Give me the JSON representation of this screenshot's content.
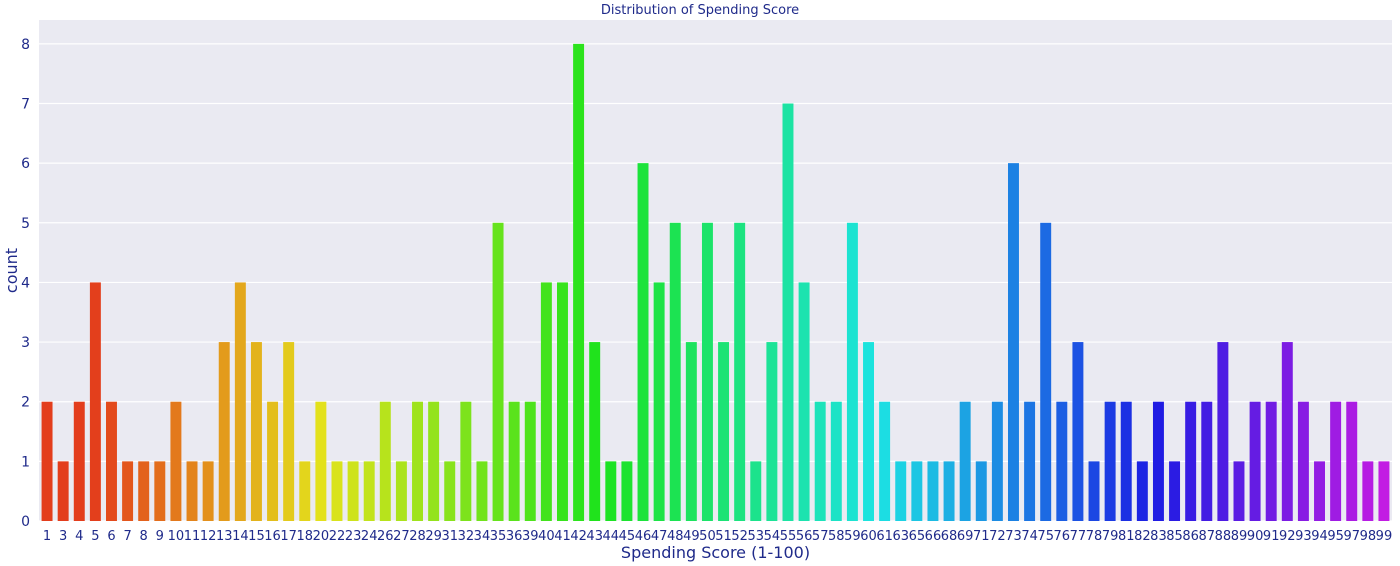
{
  "chart_data": {
    "type": "bar",
    "title": "Distribution of Spending Score",
    "xlabel": "Spending Score (1-100)",
    "ylabel": "count",
    "ylim": [
      0,
      8.4
    ],
    "yticks": [
      0,
      1,
      2,
      3,
      4,
      5,
      6,
      7,
      8
    ],
    "grid": true,
    "palette": "hsv (red → yellow → green → cyan → blue → magenta)",
    "background_color": "#eaeaf2",
    "text_color": "#1f2a8a",
    "categories": [
      "1",
      "3",
      "4",
      "5",
      "6",
      "7",
      "8",
      "9",
      "10",
      "11",
      "12",
      "13",
      "14",
      "15",
      "16",
      "17",
      "18",
      "20",
      "22",
      "23",
      "24",
      "26",
      "27",
      "28",
      "29",
      "31",
      "32",
      "34",
      "35",
      "36",
      "39",
      "40",
      "41",
      "42",
      "43",
      "44",
      "45",
      "46",
      "47",
      "48",
      "49",
      "50",
      "51",
      "52",
      "53",
      "54",
      "55",
      "56",
      "57",
      "58",
      "59",
      "60",
      "61",
      "63",
      "65",
      "66",
      "68",
      "69",
      "71",
      "72",
      "73",
      "74",
      "75",
      "76",
      "77",
      "78",
      "79",
      "81",
      "82",
      "83",
      "85",
      "86",
      "87",
      "88",
      "89",
      "90",
      "91",
      "92",
      "93",
      "94",
      "95",
      "97",
      "98",
      "99"
    ],
    "values": [
      2,
      1,
      2,
      4,
      2,
      1,
      1,
      1,
      2,
      1,
      1,
      3,
      4,
      3,
      2,
      3,
      1,
      2,
      1,
      1,
      1,
      2,
      1,
      2,
      2,
      1,
      2,
      1,
      5,
      2,
      2,
      4,
      4,
      8,
      3,
      1,
      1,
      6,
      4,
      5,
      3,
      5,
      3,
      5,
      1,
      3,
      7,
      4,
      2,
      2,
      5,
      3,
      2,
      1,
      1,
      1,
      1,
      2,
      1,
      2,
      6,
      2,
      5,
      2,
      3,
      1,
      2,
      2,
      1,
      2,
      1,
      2,
      2,
      3,
      1,
      2,
      2,
      3,
      2,
      1,
      2,
      2,
      1,
      1
    ]
  }
}
